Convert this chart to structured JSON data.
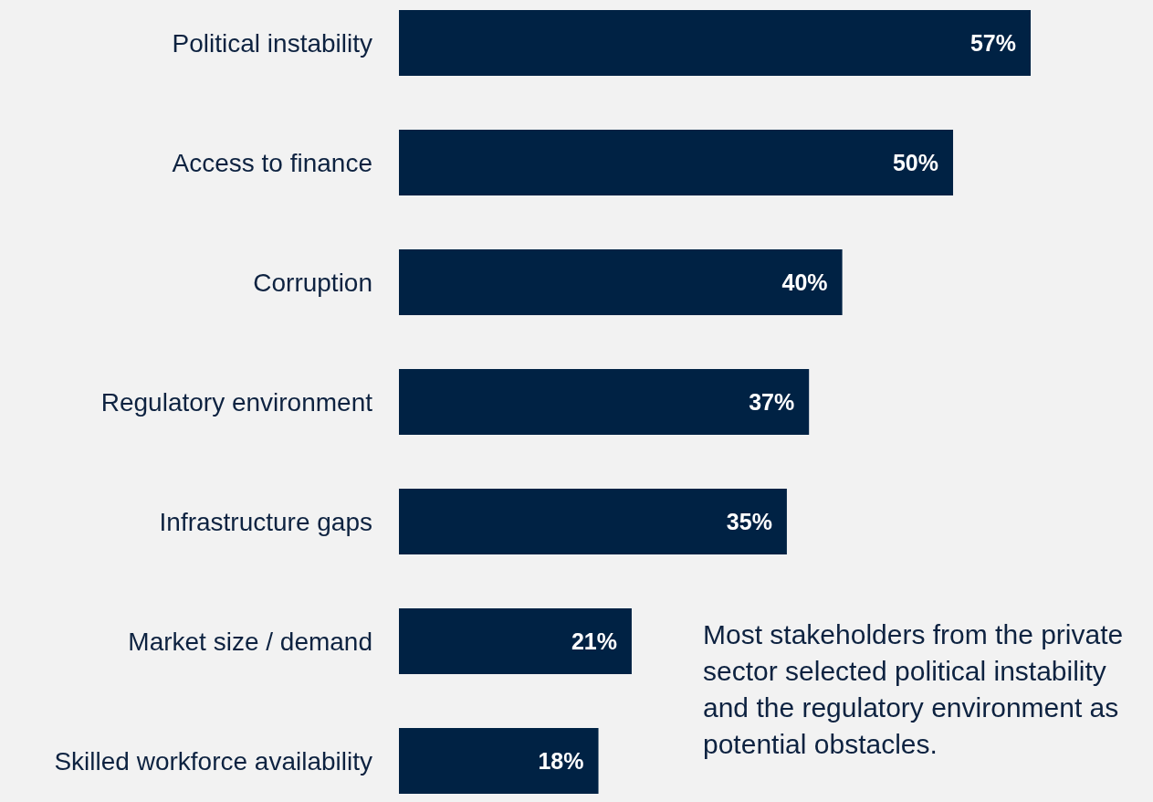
{
  "chart_data": {
    "type": "bar",
    "orientation": "horizontal",
    "categories": [
      "Political instability",
      "Access to finance",
      "Corruption",
      "Regulatory environment",
      "Infrastructure gaps",
      "Market size / demand",
      "Skilled workforce availability"
    ],
    "values": [
      57,
      50,
      40,
      37,
      35,
      21,
      18
    ],
    "value_labels": [
      "57%",
      "50%",
      "40%",
      "37%",
      "35%",
      "21%",
      "18%"
    ],
    "color": "#002244",
    "annotations": [
      "Most stakeholders from the private sector selected political instability and the regulatory environment as potential obstacles."
    ]
  }
}
